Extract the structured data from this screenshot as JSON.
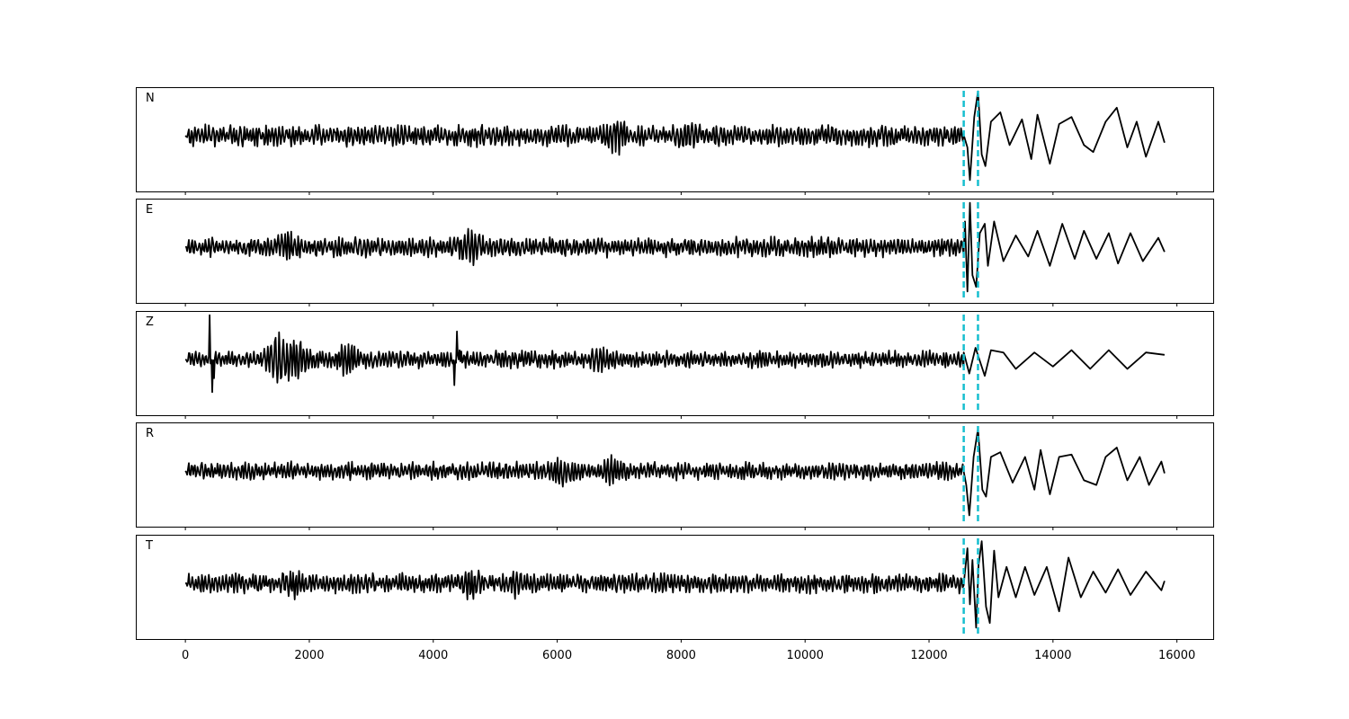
{
  "chart_data": {
    "type": "line",
    "xlim": [
      -800,
      16600
    ],
    "x_ticks": [
      0,
      2000,
      4000,
      6000,
      8000,
      10000,
      12000,
      14000,
      16000
    ],
    "x_tick_labels": [
      "0",
      "2000",
      "4000",
      "6000",
      "8000",
      "10000",
      "12000",
      "14000",
      "16000"
    ],
    "sample_range": [
      0,
      15800
    ],
    "trace_color": "#000000",
    "marker_color": "#17becf",
    "markers": [
      12560,
      12790
    ],
    "grid": false,
    "panels": [
      {
        "label": "N",
        "noise_amp": 0.22,
        "bursts": [
          {
            "x": 6950,
            "amp": 0.2
          },
          {
            "x": 8100,
            "amp": 0.12
          }
        ],
        "arrival": [
          [
            12620,
            -0.25
          ],
          [
            12660,
            -0.95
          ],
          [
            12730,
            0.4
          ],
          [
            12790,
            0.95
          ],
          [
            12850,
            -0.4
          ],
          [
            12910,
            -0.65
          ],
          [
            13000,
            0.3
          ],
          [
            13150,
            0.5
          ],
          [
            13300,
            -0.2
          ],
          [
            13500,
            0.35
          ],
          [
            13650,
            -0.5
          ],
          [
            13750,
            0.45
          ],
          [
            13950,
            -0.6
          ],
          [
            14100,
            0.25
          ],
          [
            14300,
            0.4
          ],
          [
            14500,
            -0.2
          ],
          [
            14650,
            -0.35
          ],
          [
            14850,
            0.3
          ],
          [
            15030,
            0.6
          ],
          [
            15200,
            -0.25
          ],
          [
            15350,
            0.3
          ],
          [
            15500,
            -0.45
          ],
          [
            15700,
            0.3
          ]
        ],
        "end_value": -0.15
      },
      {
        "label": "E",
        "noise_amp": 0.2,
        "bursts": [
          {
            "x": 4600,
            "amp": 0.25
          },
          {
            "x": 1650,
            "amp": 0.15
          }
        ],
        "arrival": [
          [
            12580,
            0.55
          ],
          [
            12620,
            -0.95
          ],
          [
            12660,
            0.95
          ],
          [
            12700,
            -0.6
          ],
          [
            12760,
            -0.85
          ],
          [
            12820,
            0.3
          ],
          [
            12900,
            0.5
          ],
          [
            12950,
            -0.4
          ],
          [
            13050,
            0.55
          ],
          [
            13200,
            -0.3
          ],
          [
            13400,
            0.25
          ],
          [
            13600,
            -0.2
          ],
          [
            13750,
            0.35
          ],
          [
            13950,
            -0.4
          ],
          [
            14150,
            0.5
          ],
          [
            14350,
            -0.25
          ],
          [
            14500,
            0.35
          ],
          [
            14700,
            -0.25
          ],
          [
            14900,
            0.3
          ],
          [
            15050,
            -0.35
          ],
          [
            15250,
            0.3
          ],
          [
            15450,
            -0.3
          ],
          [
            15700,
            0.2
          ]
        ],
        "end_value": -0.1
      },
      {
        "label": "Z",
        "noise_amp": 0.18,
        "bursts": [
          {
            "x": 1500,
            "amp": 0.4
          },
          {
            "x": 1800,
            "amp": 0.3
          },
          {
            "x": 2600,
            "amp": 0.2
          },
          {
            "x": 6700,
            "amp": 0.12
          }
        ],
        "spikes": [
          [
            390,
            0.95
          ],
          [
            440,
            -0.7
          ],
          [
            460,
            -0.4
          ],
          [
            4340,
            -0.55
          ],
          [
            4380,
            0.6
          ],
          [
            4420,
            0.2
          ]
        ],
        "arrival": [
          [
            12560,
            0.15
          ],
          [
            12650,
            -0.3
          ],
          [
            12750,
            0.25
          ],
          [
            12900,
            -0.35
          ],
          [
            13000,
            0.2
          ],
          [
            13200,
            0.15
          ],
          [
            13400,
            -0.2
          ],
          [
            13700,
            0.15
          ],
          [
            14000,
            -0.15
          ],
          [
            14300,
            0.2
          ],
          [
            14600,
            -0.2
          ],
          [
            14900,
            0.2
          ],
          [
            15200,
            -0.2
          ],
          [
            15500,
            0.15
          ]
        ],
        "end_value": 0.1
      },
      {
        "label": "R",
        "noise_amp": 0.18,
        "bursts": [
          {
            "x": 6900,
            "amp": 0.2
          },
          {
            "x": 6100,
            "amp": 0.15
          }
        ],
        "arrival": [
          [
            12600,
            -0.3
          ],
          [
            12650,
            -0.95
          ],
          [
            12720,
            0.3
          ],
          [
            12790,
            0.9
          ],
          [
            12860,
            -0.4
          ],
          [
            12920,
            -0.55
          ],
          [
            13000,
            0.3
          ],
          [
            13150,
            0.4
          ],
          [
            13350,
            -0.25
          ],
          [
            13550,
            0.3
          ],
          [
            13700,
            -0.4
          ],
          [
            13800,
            0.45
          ],
          [
            13950,
            -0.5
          ],
          [
            14100,
            0.3
          ],
          [
            14300,
            0.35
          ],
          [
            14500,
            -0.2
          ],
          [
            14700,
            -0.3
          ],
          [
            14850,
            0.3
          ],
          [
            15030,
            0.5
          ],
          [
            15200,
            -0.2
          ],
          [
            15400,
            0.3
          ],
          [
            15550,
            -0.3
          ],
          [
            15750,
            0.2
          ]
        ],
        "end_value": -0.05
      },
      {
        "label": "T",
        "noise_amp": 0.2,
        "bursts": [
          {
            "x": 4600,
            "amp": 0.2
          },
          {
            "x": 1750,
            "amp": 0.15
          },
          {
            "x": 5300,
            "amp": 0.12
          }
        ],
        "arrival": [
          [
            12580,
            0.25
          ],
          [
            12620,
            0.75
          ],
          [
            12660,
            -0.45
          ],
          [
            12700,
            0.5
          ],
          [
            12760,
            -0.95
          ],
          [
            12800,
            0.4
          ],
          [
            12850,
            0.9
          ],
          [
            12920,
            -0.5
          ],
          [
            12980,
            -0.85
          ],
          [
            13050,
            0.7
          ],
          [
            13120,
            -0.3
          ],
          [
            13250,
            0.35
          ],
          [
            13400,
            -0.3
          ],
          [
            13550,
            0.35
          ],
          [
            13700,
            -0.25
          ],
          [
            13900,
            0.35
          ],
          [
            14100,
            -0.6
          ],
          [
            14250,
            0.55
          ],
          [
            14450,
            -0.3
          ],
          [
            14650,
            0.25
          ],
          [
            14850,
            -0.2
          ],
          [
            15050,
            0.3
          ],
          [
            15250,
            -0.25
          ],
          [
            15500,
            0.25
          ],
          [
            15750,
            -0.15
          ]
        ],
        "end_value": 0.05
      }
    ]
  }
}
